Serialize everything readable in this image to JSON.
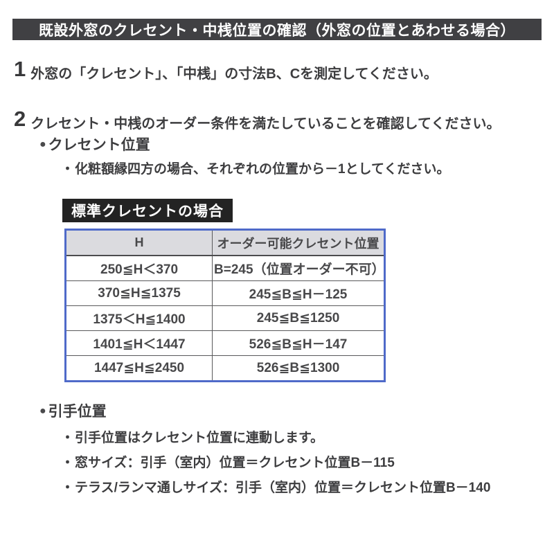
{
  "page": {
    "title": "既設外窓のクレセント・中桟位置の確認（外窓の位置とあわせる場合）"
  },
  "glyphs": {
    "bullet": "●",
    "sub_bullet": "・"
  },
  "steps": [
    {
      "number": "1",
      "text": "外窓の「クレセント」、「中桟」の寸法B、Cを測定してください。"
    },
    {
      "number": "2",
      "text": "クレセント・中桟のオーダー条件を満たしていることを確認してください。"
    }
  ],
  "crescent_section": {
    "heading": "クレセント位置",
    "note": "化粧額縁四方の場合、それぞれの位置から－1としてください。",
    "table_label": "標準クレセントの場合"
  },
  "table": {
    "headers": [
      "H",
      "オーダー可能クレセント位置"
    ],
    "rows": [
      [
        "250≦H＜370",
        "B=245（位置オーダー不可）"
      ],
      [
        "370≦H≦1375",
        "245≦B≦H－125"
      ],
      [
        "1375＜H≦1400",
        "245≦B≦1250"
      ],
      [
        "1401≦H＜1447",
        "526≦B≦H－147"
      ],
      [
        "1447≦H≦2450",
        "526≦B≦1300"
      ]
    ]
  },
  "handle_section": {
    "heading": "引手位置",
    "notes": [
      "引手位置はクレセント位置に連動します。",
      "窓サイズ：引手（室内）位置＝クレセント位置B－115",
      "テラス/ランマ通しサイズ：引手（室内）位置＝クレセント位置B－140"
    ]
  },
  "colors": {
    "header_bar_bg": "#404043",
    "label_bg": "#232323",
    "table_border": "#4f6ac9",
    "table_header_bg": "#dbdbdf",
    "inner_border": "#58585a",
    "text": "#3d3d3f"
  }
}
